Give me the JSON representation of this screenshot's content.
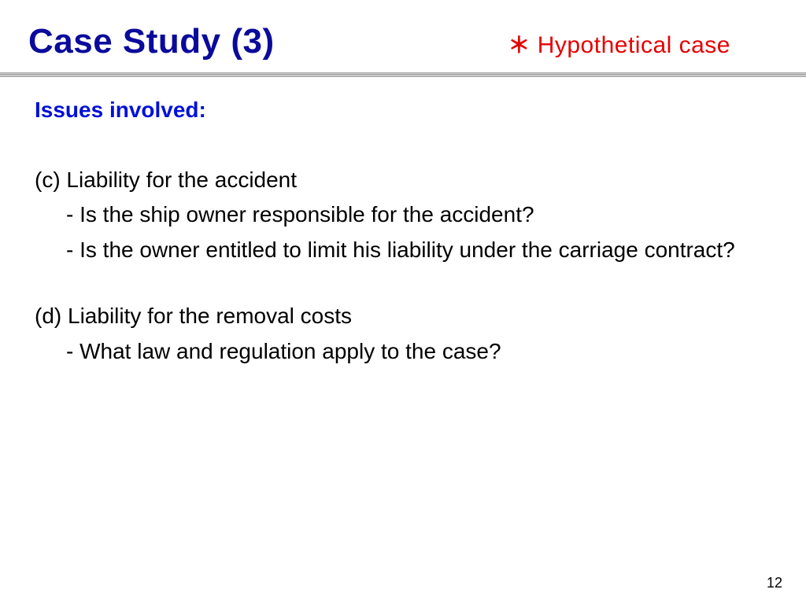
{
  "colors": {
    "title": "#0a0a9c",
    "subtitle": "#e60000",
    "heading": "#0010d8",
    "body_text": "#000000",
    "background": "#ffffff"
  },
  "typography": {
    "title_fontsize": 44,
    "subtitle_fontsize": 30,
    "body_fontsize": 28,
    "pagenum_fontsize": 18,
    "title_weight": "bold",
    "heading_weight": "bold"
  },
  "header": {
    "title": "Case Study (3)",
    "subtitle_marker": "＊",
    "subtitle": "Hypothetical case"
  },
  "section": {
    "heading": "Issues involved",
    "colon": ":"
  },
  "topics": [
    {
      "label": "(c) Liability for the accident",
      "subs": [
        "- Is the ship owner responsible for the accident?",
        "- Is the owner entitled to limit his liability under the carriage contract?"
      ]
    },
    {
      "label": "(d) Liability for the removal costs",
      "subs": [
        "- What law and regulation apply to the case?"
      ]
    }
  ],
  "page_number": "12"
}
